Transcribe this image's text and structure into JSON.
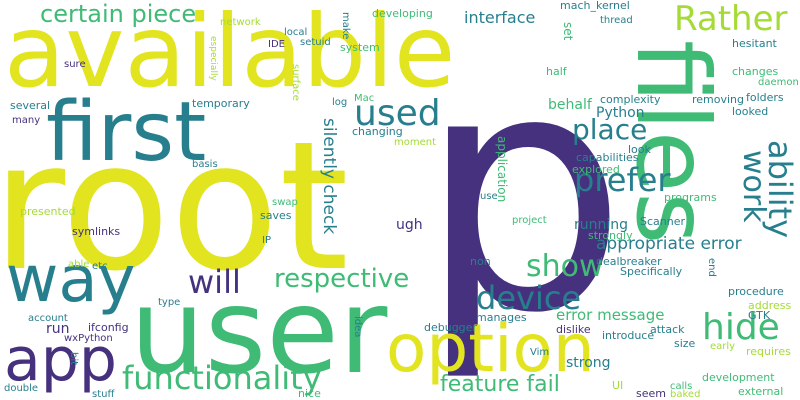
{
  "palette": {
    "dark_purple": "#46317e",
    "teal": "#277f8e",
    "green": "#3fbb76",
    "yellow": "#e1e41e",
    "lime": "#a5db36"
  },
  "words": [
    {
      "text": "p",
      "color": "#46317e"
    },
    {
      "text": "root",
      "color": "#e1e41e"
    },
    {
      "text": "available",
      "color": "#e1e41e"
    },
    {
      "text": "user",
      "color": "#3fbb76"
    },
    {
      "text": "files",
      "color": "#3fbb76"
    },
    {
      "text": "first",
      "color": "#277f8e"
    },
    {
      "text": "way",
      "color": "#277f8e"
    },
    {
      "text": "option",
      "color": "#e1e41e"
    },
    {
      "text": "app",
      "color": "#46317e"
    },
    {
      "text": "certain piece",
      "color": "#3fbb76"
    },
    {
      "text": "Rather",
      "color": "#a5db36"
    },
    {
      "text": "used",
      "color": "#277f8e"
    },
    {
      "text": "place",
      "color": "#277f8e"
    },
    {
      "text": "prefer",
      "color": "#277f8e"
    },
    {
      "text": "work",
      "color": "#277f8e"
    },
    {
      "text": "ability",
      "color": "#277f8e"
    },
    {
      "text": "functionality",
      "color": "#3fbb76"
    },
    {
      "text": "device",
      "color": "#277f8e"
    },
    {
      "text": "show",
      "color": "#3fbb76"
    },
    {
      "text": "hide",
      "color": "#3fbb76"
    },
    {
      "text": "respective",
      "color": "#3fbb76"
    },
    {
      "text": "will",
      "color": "#46317e"
    },
    {
      "text": "feature fail",
      "color": "#3fbb76"
    },
    {
      "text": "silently check",
      "color": "#277f8e"
    },
    {
      "text": "appropriate error",
      "color": "#277f8e"
    },
    {
      "text": "error message",
      "color": "#3fbb76"
    },
    {
      "text": "interface",
      "color": "#277f8e"
    },
    {
      "text": "mach_kernel",
      "color": "#277f8e"
    },
    {
      "text": "thread",
      "color": "#277f8e"
    },
    {
      "text": "hesitant",
      "color": "#277f8e"
    },
    {
      "text": "changes",
      "color": "#3fbb76"
    },
    {
      "text": "daemon",
      "color": "#3fbb76"
    },
    {
      "text": "folders",
      "color": "#277f8e"
    },
    {
      "text": "looked",
      "color": "#277f8e"
    },
    {
      "text": "removing",
      "color": "#277f8e"
    },
    {
      "text": "complexity",
      "color": "#277f8e"
    },
    {
      "text": "half",
      "color": "#3fbb76"
    },
    {
      "text": "behalf",
      "color": "#3fbb76"
    },
    {
      "text": "Python",
      "color": "#277f8e"
    },
    {
      "text": "look",
      "color": "#277f8e"
    },
    {
      "text": "capabilities",
      "color": "#277f8e"
    },
    {
      "text": "explored",
      "color": "#3fbb76"
    },
    {
      "text": "application",
      "color": "#3fbb76"
    },
    {
      "text": "programs",
      "color": "#3fbb76"
    },
    {
      "text": "strongly",
      "color": "#3fbb76"
    },
    {
      "text": "Scanner",
      "color": "#277f8e"
    },
    {
      "text": "running",
      "color": "#277f8e"
    },
    {
      "text": "project",
      "color": "#3fbb76"
    },
    {
      "text": "use",
      "color": "#277f8e"
    },
    {
      "text": "dealbreaker",
      "color": "#277f8e"
    },
    {
      "text": "Specifically",
      "color": "#277f8e"
    },
    {
      "text": "end",
      "color": "#277f8e"
    },
    {
      "text": "procedure",
      "color": "#277f8e"
    },
    {
      "text": "address",
      "color": "#a5db36"
    },
    {
      "text": "GTK",
      "color": "#277f8e"
    },
    {
      "text": "requires",
      "color": "#a5db36"
    },
    {
      "text": "early",
      "color": "#a5db36"
    },
    {
      "text": "development",
      "color": "#3fbb76"
    },
    {
      "text": "external",
      "color": "#3fbb76"
    },
    {
      "text": "calls",
      "color": "#3fbb76"
    },
    {
      "text": "baked",
      "color": "#a5db36"
    },
    {
      "text": "attack",
      "color": "#277f8e"
    },
    {
      "text": "introduce",
      "color": "#277f8e"
    },
    {
      "text": "size",
      "color": "#277f8e"
    },
    {
      "text": "seem",
      "color": "#46317e"
    },
    {
      "text": "UI",
      "color": "#a5db36"
    },
    {
      "text": "strong",
      "color": "#277f8e"
    },
    {
      "text": "dislike",
      "color": "#46317e"
    },
    {
      "text": "Vim",
      "color": "#277f8e"
    },
    {
      "text": "manages",
      "color": "#277f8e"
    },
    {
      "text": "debugger",
      "color": "#277f8e"
    },
    {
      "text": "idea",
      "color": "#277f8e"
    },
    {
      "text": "nice",
      "color": "#3fbb76"
    },
    {
      "text": "non",
      "color": "#277f8e"
    },
    {
      "text": "ugh",
      "color": "#46317e"
    },
    {
      "text": "network",
      "color": "#a5db36"
    },
    {
      "text": "especially",
      "color": "#a5db36"
    },
    {
      "text": "local",
      "color": "#277f8e"
    },
    {
      "text": "setuid",
      "color": "#277f8e"
    },
    {
      "text": "make",
      "color": "#277f8e"
    },
    {
      "text": "developing",
      "color": "#3fbb76"
    },
    {
      "text": "set",
      "color": "#3fbb76"
    },
    {
      "text": "system",
      "color": "#3fbb76"
    },
    {
      "text": "IDE",
      "color": "#46317e"
    },
    {
      "text": "sure",
      "color": "#46317e"
    },
    {
      "text": "surface",
      "color": "#a5db36"
    },
    {
      "text": "log",
      "color": "#277f8e"
    },
    {
      "text": "Mac",
      "color": "#3fbb76"
    },
    {
      "text": "temporary",
      "color": "#277f8e"
    },
    {
      "text": "several",
      "color": "#277f8e"
    },
    {
      "text": "many",
      "color": "#46317e"
    },
    {
      "text": "changing",
      "color": "#277f8e"
    },
    {
      "text": "moment",
      "color": "#a5db36"
    },
    {
      "text": "basis",
      "color": "#277f8e"
    },
    {
      "text": "presented",
      "color": "#a5db36"
    },
    {
      "text": "swap",
      "color": "#3fbb76"
    },
    {
      "text": "saves",
      "color": "#277f8e"
    },
    {
      "text": "IP",
      "color": "#277f8e"
    },
    {
      "text": "symlinks",
      "color": "#46317e"
    },
    {
      "text": "able",
      "color": "#a5db36"
    },
    {
      "text": "etc",
      "color": "#277f8e"
    },
    {
      "text": "type",
      "color": "#277f8e"
    },
    {
      "text": "account",
      "color": "#277f8e"
    },
    {
      "text": "run",
      "color": "#46317e"
    },
    {
      "text": "ifconfig",
      "color": "#46317e"
    },
    {
      "text": "wxPython",
      "color": "#46317e"
    },
    {
      "text": "bit",
      "color": "#277f8e"
    },
    {
      "text": "double",
      "color": "#277f8e"
    },
    {
      "text": "stuff",
      "color": "#277f8e"
    }
  ]
}
